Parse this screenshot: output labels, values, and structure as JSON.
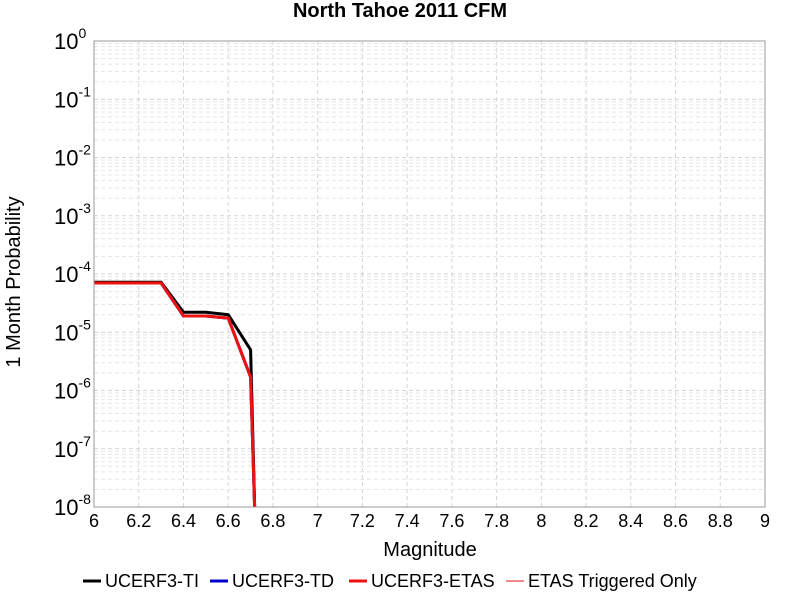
{
  "chart_data": {
    "type": "line",
    "title": "North Tahoe 2011 CFM",
    "xlabel": "Magnitude",
    "ylabel": "1 Month Probability",
    "xlim": [
      6,
      9
    ],
    "ylim": [
      1e-08,
      1
    ],
    "yscale": "log",
    "grid": true,
    "legend_position": "bottom",
    "x_ticks": [
      "6",
      "6.2",
      "6.4",
      "6.6",
      "6.8",
      "7",
      "7.2",
      "7.4",
      "7.6",
      "7.8",
      "8",
      "8.2",
      "8.4",
      "8.6",
      "8.8",
      "9"
    ],
    "y_ticks": [
      {
        "base": "10",
        "exp": "0"
      },
      {
        "base": "10",
        "exp": "-1"
      },
      {
        "base": "10",
        "exp": "-2"
      },
      {
        "base": "10",
        "exp": "-3"
      },
      {
        "base": "10",
        "exp": "-4"
      },
      {
        "base": "10",
        "exp": "-5"
      },
      {
        "base": "10",
        "exp": "-6"
      },
      {
        "base": "10",
        "exp": "-7"
      },
      {
        "base": "10",
        "exp": "-8"
      }
    ],
    "series": [
      {
        "name": "ETAS Triggered Only",
        "color": "#f08a8a",
        "x": [
          6.0,
          6.3,
          6.4,
          6.5,
          6.6,
          6.7,
          6.72
        ],
        "y": [
          7e-05,
          7e-05,
          1.9e-05,
          1.9e-05,
          1.75e-05,
          1.7e-06,
          6e-09
        ]
      },
      {
        "name": "UCERF3-TI",
        "color": "#000000",
        "x": [
          6.0,
          6.3,
          6.4,
          6.5,
          6.6,
          6.7,
          6.72
        ],
        "y": [
          7.2e-05,
          7.2e-05,
          2.2e-05,
          2.2e-05,
          2e-05,
          5e-06,
          6e-09
        ]
      },
      {
        "name": "UCERF3-TD",
        "color": "#0000cc",
        "x": [
          6.0,
          6.3,
          6.4,
          6.5,
          6.6,
          6.7,
          6.72
        ],
        "y": [
          7e-05,
          7e-05,
          1.9e-05,
          1.9e-05,
          1.75e-05,
          1.7e-06,
          6e-09
        ]
      },
      {
        "name": "UCERF3-ETAS",
        "color": "#ee1111",
        "x": [
          6.0,
          6.3,
          6.4,
          6.5,
          6.6,
          6.7,
          6.72
        ],
        "y": [
          7e-05,
          7e-05,
          1.9e-05,
          1.9e-05,
          1.75e-05,
          1.7e-06,
          6e-09
        ]
      }
    ],
    "legend": [
      {
        "name": "UCERF3-TI",
        "color": "#000000"
      },
      {
        "name": "UCERF3-TD",
        "color": "#0000cc"
      },
      {
        "name": "UCERF3-ETAS",
        "color": "#ee1111"
      },
      {
        "name": "ETAS Triggered Only",
        "color": "#f08a8a"
      }
    ]
  }
}
